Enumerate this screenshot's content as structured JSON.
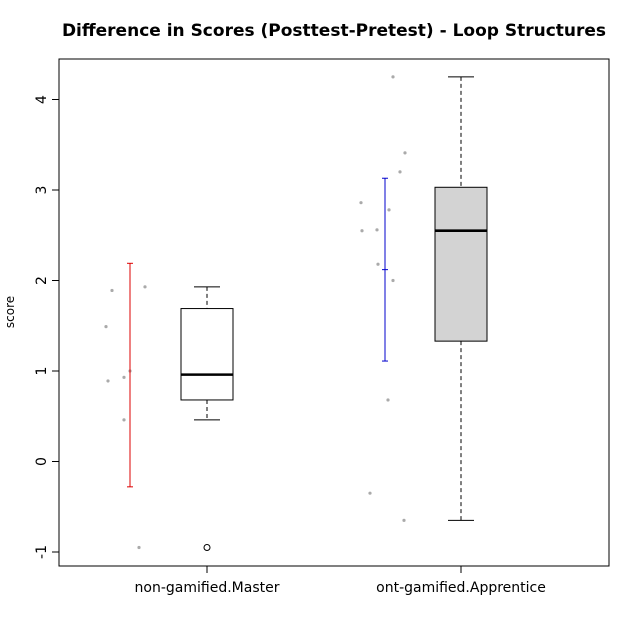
{
  "chart_data": {
    "type": "boxplot",
    "title": "Difference in Scores (Posttest-Pretest) - Loop Structures",
    "xlabel": "",
    "ylabel": "score",
    "ylim": [
      -1.15,
      4.45
    ],
    "y_ticks": [
      "-1",
      "0",
      "1",
      "2",
      "3",
      "4"
    ],
    "grid": false,
    "legend": "none",
    "categories": [
      "non-gamified.Master",
      "ont-gamified.Apprentice"
    ],
    "series": [
      {
        "category": "non-gamified.Master",
        "box_fill": "#ffffff",
        "interval_color": "#dd0000",
        "whisker_low": 0.46,
        "q1": 0.68,
        "median": 0.96,
        "q3": 1.69,
        "whisker_high": 1.93,
        "outliers": [
          -0.95
        ],
        "interval": {
          "low": -0.28,
          "high": 2.19
        },
        "points": [
          -0.95,
          0.46,
          0.89,
          0.93,
          1.0,
          1.49,
          1.89,
          1.93
        ]
      },
      {
        "category": "ont-gamified.Apprentice",
        "box_fill": "#d3d3d3",
        "interval_color": "#0000cc",
        "whisker_low": -0.65,
        "q1": 1.33,
        "median": 2.55,
        "q3": 3.03,
        "whisker_high": 4.25,
        "outliers": [],
        "interval": {
          "low": 1.11,
          "high": 3.13,
          "mid": 2.12
        },
        "points": [
          -0.35,
          -0.65,
          0.68,
          2.0,
          2.18,
          2.55,
          2.56,
          2.78,
          2.86,
          3.2,
          3.41,
          4.25
        ]
      }
    ]
  }
}
